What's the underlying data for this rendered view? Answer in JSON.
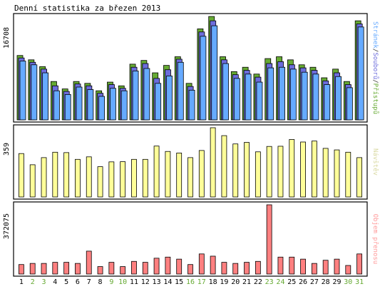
{
  "chart_data": {
    "type": "bar",
    "title": "Denní statistika za březen 2013",
    "categories": [
      "1",
      "2",
      "3",
      "4",
      "5",
      "6",
      "7",
      "8",
      "9",
      "10",
      "11",
      "12",
      "13",
      "14",
      "15",
      "16",
      "17",
      "18",
      "19",
      "20",
      "21",
      "22",
      "23",
      "24",
      "25",
      "26",
      "27",
      "28",
      "29",
      "30",
      "31"
    ],
    "weekend_days": [
      "2",
      "3",
      "9",
      "10",
      "16",
      "17",
      "23",
      "24",
      "30",
      "31"
    ],
    "panels": [
      {
        "id": "traffic",
        "ymax_label": "16708",
        "ymax": 16708,
        "legend": [
          "Stránek",
          "/",
          "Souborů",
          "/",
          "Přístupů"
        ],
        "legend_colors": [
          "#66aaff",
          "#333333",
          "#6c6cdc",
          "#333333",
          "#66aa33"
        ],
        "series": [
          {
            "name": "Přístupů",
            "color": "#66aa33",
            "values": [
              10400,
              9700,
              8600,
              6200,
              5000,
              6200,
              5900,
              4700,
              6100,
              5500,
              9000,
              9600,
              7600,
              8800,
              10200,
              5900,
              14700,
              16700,
              10200,
              7800,
              8500,
              7400,
              9900,
              10200,
              9700,
              8900,
              8500,
              6800,
              8200,
              6200,
              16000
            ]
          },
          {
            "name": "Souborů",
            "color": "#6c6cdc",
            "values": [
              10000,
              9300,
              8200,
              5500,
              4600,
              5800,
              5500,
              4300,
              5700,
              5100,
              8500,
              9100,
              6700,
              8100,
              9800,
              5400,
              14200,
              16000,
              9700,
              7300,
              8000,
              6900,
              9100,
              9400,
              8900,
              8400,
              8000,
              6300,
              7600,
              5700,
              15500
            ]
          },
          {
            "name": "Stránek",
            "color": "#66aaff",
            "values": [
              9500,
              8900,
              7600,
              4700,
              4100,
              5300,
              4900,
              3800,
              5100,
              4700,
              7900,
              8300,
              5900,
              7100,
              9300,
              4800,
              13500,
              15200,
              9100,
              6700,
              7400,
              6100,
              8400,
              8500,
              8200,
              7700,
              7400,
              5700,
              7000,
              5200,
              15000
            ]
          }
        ]
      },
      {
        "id": "visits",
        "ymax_label": "359",
        "ymax": 359,
        "legend": [
          "Návštěv"
        ],
        "legend_colors": [
          "#d8d8a0"
        ],
        "series": [
          {
            "name": "Návštěv",
            "color": "#ffff99",
            "values": [
              225,
              167,
              204,
              232,
              230,
              195,
              208,
              157,
              182,
              183,
              195,
              195,
              264,
              236,
              228,
              204,
              241,
              359,
              318,
              275,
              283,
              234,
              262,
              263,
              298,
              285,
              290,
              252,
              244,
              232,
              204
            ]
          }
        ]
      },
      {
        "id": "transfer",
        "ymax_label": "372075",
        "ymax": 372075,
        "legend": [
          "Objem přenosu"
        ],
        "legend_colors": [
          "#ff9999"
        ],
        "series": [
          {
            "name": "Objem přenosu",
            "color": "#ff8080",
            "values": [
              51000,
              57000,
              57000,
              63000,
              63000,
              57000,
              123000,
              40000,
              63000,
              40000,
              68000,
              63000,
              85000,
              91000,
              80000,
              51000,
              108000,
              96000,
              63000,
              57000,
              63000,
              68000,
              372075,
              91000,
              91000,
              80000,
              57000,
              74000,
              80000,
              46000,
              108000
            ]
          }
        ]
      }
    ]
  }
}
